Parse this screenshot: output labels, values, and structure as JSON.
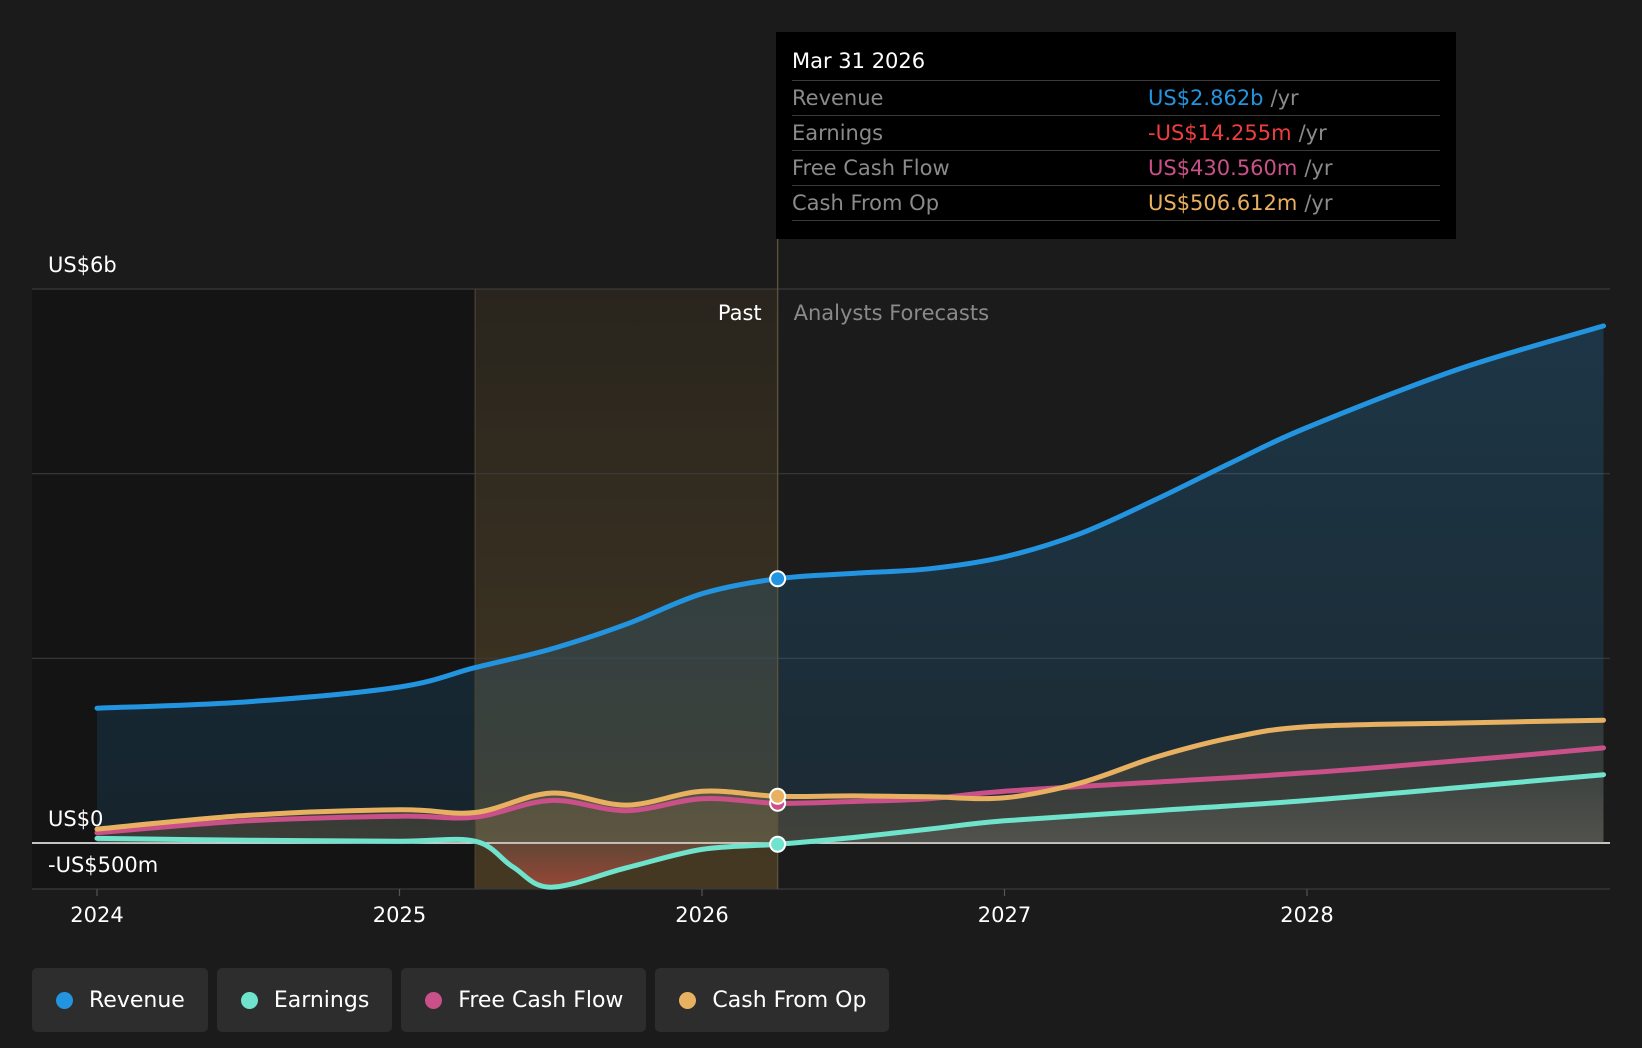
{
  "colors": {
    "revenue": "#2394df",
    "earnings": "#6fe3cb",
    "fcf": "#c95088",
    "cfo": "#e8b061",
    "background": "#1b1b1b"
  },
  "tooltip": {
    "date": "Mar 31 2026",
    "rows": [
      {
        "label": "Revenue",
        "value": "US$2.862b",
        "unit": "/yr",
        "color": "#2394df"
      },
      {
        "label": "Earnings",
        "value": "-US$14.255m",
        "unit": "/yr",
        "color": "#ef3e3e"
      },
      {
        "label": "Free Cash Flow",
        "value": "US$430.560m",
        "unit": "/yr",
        "color": "#c95088"
      },
      {
        "label": "Cash From Op",
        "value": "US$506.612m",
        "unit": "/yr",
        "color": "#e8b061"
      }
    ]
  },
  "labels": {
    "past": "Past",
    "forecast": "Analysts Forecasts"
  },
  "legend": [
    {
      "label": "Revenue",
      "color": "#2394df"
    },
    {
      "label": "Earnings",
      "color": "#6fe3cb"
    },
    {
      "label": "Free Cash Flow",
      "color": "#c95088"
    },
    {
      "label": "Cash From Op",
      "color": "#e8b061"
    }
  ],
  "chart_data": {
    "type": "line",
    "yaxis": {
      "unit": "US$ m",
      "range": [
        -500,
        6000
      ],
      "tick_labels": [
        {
          "value": 6000,
          "label": "US$6b"
        },
        {
          "value": 0,
          "label": "US$0"
        },
        {
          "value": -500,
          "label": "-US$500m"
        }
      ],
      "gridlines": [
        6000,
        4000,
        2000,
        0,
        -500
      ]
    },
    "xaxis": {
      "range": [
        2023.99,
        5.0
      ],
      "ticks": [
        {
          "value": 2024.0,
          "label": "2024"
        },
        {
          "value": 2025.0,
          "label": "2025"
        },
        {
          "value": 2026.0,
          "label": "2026"
        },
        {
          "value": 2027.0,
          "label": "2027"
        },
        {
          "value": 2028.0,
          "label": "2028"
        }
      ]
    },
    "x_domain": [
      2023.78,
      2028.99
    ],
    "past_band_start": 2025.25,
    "forecast_start": 2026.25,
    "series": [
      {
        "name": "Revenue",
        "key": "revenue",
        "points": [
          [
            2024.0,
            1460
          ],
          [
            2024.5,
            1530
          ],
          [
            2025.0,
            1690
          ],
          [
            2025.25,
            1900
          ],
          [
            2025.5,
            2100
          ],
          [
            2025.75,
            2370
          ],
          [
            2026.0,
            2700
          ],
          [
            2026.25,
            2862
          ],
          [
            2026.5,
            2920
          ],
          [
            2026.75,
            2970
          ],
          [
            2027.0,
            3100
          ],
          [
            2027.25,
            3350
          ],
          [
            2027.5,
            3720
          ],
          [
            2027.75,
            4120
          ],
          [
            2028.0,
            4500
          ],
          [
            2028.5,
            5130
          ],
          [
            2029.0,
            5600
          ]
        ]
      },
      {
        "name": "Earnings",
        "key": "earnings",
        "points": [
          [
            2024.0,
            50
          ],
          [
            2024.5,
            30
          ],
          [
            2025.0,
            20
          ],
          [
            2025.25,
            20
          ],
          [
            2025.375,
            -260
          ],
          [
            2025.5,
            -480
          ],
          [
            2025.75,
            -270
          ],
          [
            2026.0,
            -70
          ],
          [
            2026.25,
            -14
          ],
          [
            2026.5,
            60
          ],
          [
            2026.75,
            150
          ],
          [
            2027.0,
            240
          ],
          [
            2027.5,
            350
          ],
          [
            2028.0,
            460
          ],
          [
            2028.5,
            600
          ],
          [
            2029.0,
            740
          ]
        ]
      },
      {
        "name": "Free Cash Flow",
        "key": "fcf",
        "points": [
          [
            2024.0,
            110
          ],
          [
            2024.5,
            240
          ],
          [
            2025.0,
            290
          ],
          [
            2025.25,
            280
          ],
          [
            2025.5,
            460
          ],
          [
            2025.75,
            350
          ],
          [
            2026.0,
            480
          ],
          [
            2026.25,
            430
          ],
          [
            2026.5,
            450
          ],
          [
            2026.75,
            480
          ],
          [
            2027.0,
            560
          ],
          [
            2027.5,
            660
          ],
          [
            2028.0,
            760
          ],
          [
            2028.5,
            890
          ],
          [
            2029.0,
            1030
          ]
        ]
      },
      {
        "name": "Cash From Op",
        "key": "cfo",
        "points": [
          [
            2024.0,
            150
          ],
          [
            2024.5,
            300
          ],
          [
            2025.0,
            360
          ],
          [
            2025.25,
            330
          ],
          [
            2025.5,
            540
          ],
          [
            2025.75,
            410
          ],
          [
            2026.0,
            560
          ],
          [
            2026.25,
            506
          ],
          [
            2026.5,
            510
          ],
          [
            2026.75,
            500
          ],
          [
            2027.0,
            490
          ],
          [
            2027.25,
            650
          ],
          [
            2027.5,
            930
          ],
          [
            2027.75,
            1140
          ],
          [
            2028.0,
            1260
          ],
          [
            2028.5,
            1300
          ],
          [
            2029.0,
            1330
          ]
        ]
      }
    ],
    "highlight_x": 2026.25
  }
}
